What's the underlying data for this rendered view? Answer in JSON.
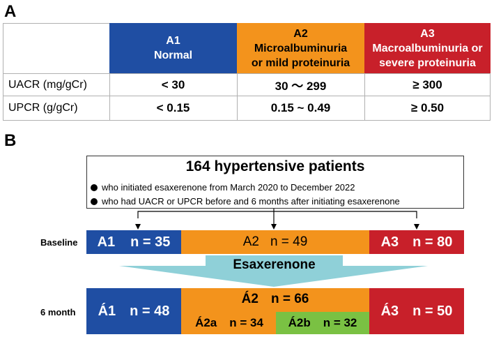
{
  "panel_a": {
    "label": "A",
    "headers": [
      {
        "code": "A1",
        "desc": [
          "Normal"
        ],
        "color": "#1f4ea3"
      },
      {
        "code": "A2",
        "desc": [
          "Microalbuminuria",
          "or mild proteinuria"
        ],
        "color": "#f3931c"
      },
      {
        "code": "A3",
        "desc": [
          "Macroalbuminuria or",
          "severe proteinuria"
        ],
        "color": "#c8202a"
      }
    ],
    "rows": [
      {
        "label": "UACR (mg/gCr)",
        "values": [
          "< 30",
          "30 〜 299",
          "≥ 300"
        ]
      },
      {
        "label": "UPCR (g/gCr)",
        "values": [
          "< 0.15",
          "0.15 ~ 0.49",
          "≥ 0.50"
        ]
      }
    ]
  },
  "panel_b": {
    "label": "B",
    "title": "164 hypertensive patients",
    "criteria": [
      "who initiated esaxerenone from March 2020 to December 2022",
      "who had UACR or UPCR before and 6 months after initiating esaxerenone"
    ],
    "baseline": {
      "row_label": "Baseline",
      "a1": {
        "code": "A1",
        "n": "n = 35"
      },
      "a2": {
        "code": "A2",
        "n": "n = 49"
      },
      "a3": {
        "code": "A3",
        "n": "n = 80"
      }
    },
    "arrow_label": "Esaxerenone",
    "month6": {
      "row_label": "6 month",
      "a1": {
        "code": "Á1",
        "n": "n = 48"
      },
      "a2": {
        "code": "Á2",
        "n": "n = 66"
      },
      "a2a": {
        "code": "Á2a",
        "n": "n = 34"
      },
      "a2b": {
        "code": "Á2b",
        "n": "n = 32"
      },
      "a3": {
        "code": "Á3",
        "n": "n = 50"
      }
    },
    "colors": {
      "blue": "#1f4ea3",
      "orange": "#f3931c",
      "red": "#c8202a",
      "green": "#7ac143",
      "teal": "#8fd0d8"
    }
  }
}
